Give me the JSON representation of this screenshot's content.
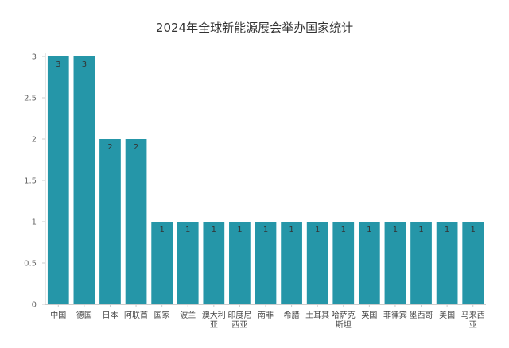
{
  "chart_data": {
    "type": "bar",
    "title": "2024年全球新能源展会举办国家统计",
    "xlabel": "",
    "ylabel": "",
    "categories": [
      "中国",
      "德国",
      "日本",
      "阿联酋",
      "国家",
      "波兰",
      "澳大利亚",
      "印度尼西亚",
      "南非",
      "希腊",
      "土耳其",
      "哈萨克斯坦",
      "英国",
      "菲律宾",
      "墨西哥",
      "美国",
      "马来西亚"
    ],
    "values": [
      3,
      3,
      2,
      2,
      1,
      1,
      1,
      1,
      1,
      1,
      1,
      1,
      1,
      1,
      1,
      1,
      1
    ],
    "data_labels": [
      "3",
      "3",
      "2",
      "2",
      "1",
      "1",
      "1",
      "1",
      "1",
      "1",
      "1",
      "1",
      "1",
      "1",
      "1",
      "1",
      "1"
    ],
    "ylim": [
      0,
      3
    ],
    "y_ticks": [
      "0",
      "0.5",
      "1",
      "1.5",
      "2",
      "2.5",
      "3"
    ],
    "grid": false,
    "legend": "none",
    "bar_color": "#2596a8",
    "category_lines": [
      [
        "中国"
      ],
      [
        "德国"
      ],
      [
        "日本"
      ],
      [
        "阿联酋"
      ],
      [
        "国家"
      ],
      [
        "波兰"
      ],
      [
        "澳大利",
        "亚"
      ],
      [
        "印度尼",
        "西亚"
      ],
      [
        "南非"
      ],
      [
        "希腊"
      ],
      [
        "土耳其"
      ],
      [
        "哈萨克",
        "斯坦"
      ],
      [
        "英国"
      ],
      [
        "菲律宾"
      ],
      [
        "墨西哥"
      ],
      [
        "美国"
      ],
      [
        "马来西",
        "亚"
      ]
    ]
  }
}
